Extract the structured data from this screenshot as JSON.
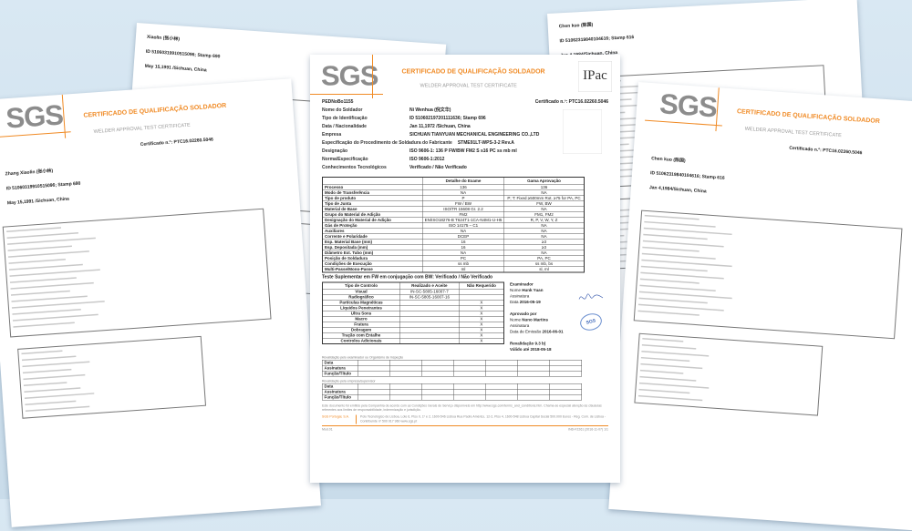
{
  "certificate": {
    "title": "CERTIFICADO DE QUALIFICAÇÃO SOLDADOR",
    "subtitle": "WELDER APPROVAL TEST CERTIFICATE",
    "logo": "SGS",
    "accreditation_logo": "IPAC",
    "ref": "PEDNoBo1155",
    "certificate_no": "Certificado n.º: PTC16.02260.5046",
    "header_labels": {
      "name": "Nome do Soldador",
      "id": "Tipo de Identificação",
      "date": "Data / Nacionalidade",
      "company": "Empresa",
      "wps": "Especificação do Procedimento de Soldadura do Fabricante",
      "designation": "Designação",
      "norm": "Norma/Especificação",
      "knowledge": "Conhecimentos Tecnológicos"
    },
    "company": "SICHUAN TIANYUAN MECHANICAL ENGINEERING CO.,LTD",
    "wps": "STME91LT-WPS-3-2 Rev.A",
    "designation": "ISO 9606-1: 136 P FW/BW FM2 S s16 PC ss mb ml",
    "norm": "ISO 9606-1:2012",
    "knowledge": "Verificado / Não Verificado",
    "table_headers": [
      "",
      "Detalhe do Exame",
      "Gama Aprovação"
    ],
    "table_rows": [
      [
        "Processo",
        "136",
        "136"
      ],
      [
        "Modo de Transferência",
        "NA",
        "NA"
      ],
      [
        "Tipo de produto",
        "P",
        "P; T: Fixed ≥500mm Rot. ≥75 for PA, PC"
      ],
      [
        "Tipo de Junta",
        "FW / BW",
        "FW, BW"
      ],
      [
        "Material de Base",
        "ISO/TR 15608 Gr. 2.2",
        "NA"
      ],
      [
        "Grupo do Material de Adição",
        "FM2",
        "FM1, FM2"
      ],
      [
        "Designação do Material de Adição",
        "EN/ISO18276-B T624T1-1CA-N4M1-U-H5",
        "R, P, V, W, Y, Z"
      ],
      [
        "Gás de Proteção",
        "ISO 14175 – C1",
        "NA"
      ],
      [
        "Auxiliares",
        "NA",
        "NA"
      ],
      [
        "Corrente e Polaridade",
        "DCEP",
        "NA"
      ],
      [
        "Esp. Material Base (mm)",
        "16",
        "≥3"
      ],
      [
        "Esp. Depositada (mm)",
        "16",
        "≥3"
      ],
      [
        "Diâmetro Ext. Tubo (mm)",
        "NA",
        "NA"
      ],
      [
        "Posição de Soldadura",
        "PC",
        "PA, PC"
      ],
      [
        "Condições de Execução",
        "ss mb",
        "ss mb, bs"
      ],
      [
        "Multi-Passe/Mono-Passe",
        "ml",
        "sl, ml"
      ]
    ],
    "supplementary": "Teste Suplementar em FW em conjugação com BW: Verificado / Não Verificado",
    "control_headers": [
      "Tipo de Controlo",
      "Realizado e Aceite",
      "Não Requerido"
    ],
    "control_rows": [
      [
        "Visual",
        "IN-SC-5805-16007-7",
        ""
      ],
      [
        "Radiográfico",
        "IN-SC-5805-16007-16",
        ""
      ],
      [
        "Partículas Magnéticas",
        "",
        "X"
      ],
      [
        "Líquidos Penetrantes",
        "",
        "X"
      ],
      [
        "Ultra Sons",
        "",
        "X"
      ],
      [
        "Macro",
        "",
        "X"
      ],
      [
        "Fratura",
        "",
        "X"
      ],
      [
        "Dobragem",
        "",
        "X"
      ],
      [
        "Tração com Entalhe",
        "",
        "X"
      ],
      [
        "Controlos Adicionais",
        "",
        "X"
      ]
    ],
    "examiner": {
      "title": "Examinador",
      "name_label": "Nome",
      "name": "Hunk Yuan",
      "signature_label": "Assinatura",
      "date_label": "Data",
      "date": "2016-05-19"
    },
    "approved": {
      "title": "Aprovado por",
      "name_label": "Nome",
      "name": "Nuno Martins",
      "signature_label": "Assinatura",
      "date_label": "Data de Emissão",
      "date": "2016-06-01"
    },
    "revalidation_label": "Revalidação",
    "revalidation": "9.3 b)",
    "valid_label": "Válido até",
    "valid": "2018-05-18",
    "stamp": "SGS",
    "reval1_title": "Revalidação pelo examinador ou Organismo de Inspeção",
    "reval2_title": "Revalidação pela empresa/supervisor",
    "reval_rows": [
      "Data",
      "Assinatura",
      "Função/Título"
    ],
    "footer_text": "Este documento foi emitido pela Companhia de acordo com as Condições Gerais de Serviço disponíveis em http://www.sgs.com/terms_and_conditions.htm. Chama-se especial atenção às cláusulas referentes aos limites de responsabilidade, indemnização e jurisdição.",
    "brand": "SGS Portugal, S.A.",
    "address": "Polo Tecnológico de Lisboa, Lote 6, Piso 0, 1º e 2, 1600-546 Lisboa  Rua Padre Américo, 12-2, Piso 4, 1600-548 Lisboa  Capital Social 500.000 Euros - Reg. Com. de Lisboa - Contribuinte nº 500 917 960  www.sgs.pt",
    "version": "Mod.01",
    "doc_id": "IND-F2261 (2016-11-07) 1/1"
  },
  "sheets": [
    {
      "id": "back-left",
      "welder": "Xiaolin (张小林)",
      "id_line": "ID 51060319910515096; Stamp 690",
      "date_line": "May 15,1991 /Sichuan, China"
    },
    {
      "id": "back-right",
      "welder": "Chen kuo (陈国)",
      "id_line": "ID 51062319840104616; Stamp 616",
      "date_line": "Jan 4,1984/Sichuan, China"
    },
    {
      "id": "left",
      "welder": "Zhang Xiaolin (张小林)",
      "id_line": "ID 51060319910515096; Stamp 690",
      "date_line": "May 15,1991 /Sichuan, China"
    },
    {
      "id": "right",
      "welder": "Chen kuo (陈国)",
      "id_line": "ID 51062319840104616; Stamp 616",
      "date_line": "Jan 4,1984/Sichuan, China"
    },
    {
      "id": "center",
      "welder": "Ni Wenhua (倪文华)",
      "id_line": "ID 510602197201111636;  Stamp 696",
      "date_line": "Jan 11,1972 /Sichuan, China"
    }
  ],
  "colors": {
    "accent": "#f08a24",
    "logo_gray": "#8c8c8c",
    "background": "#cfe0ee",
    "stamp": "#3d67b8"
  }
}
